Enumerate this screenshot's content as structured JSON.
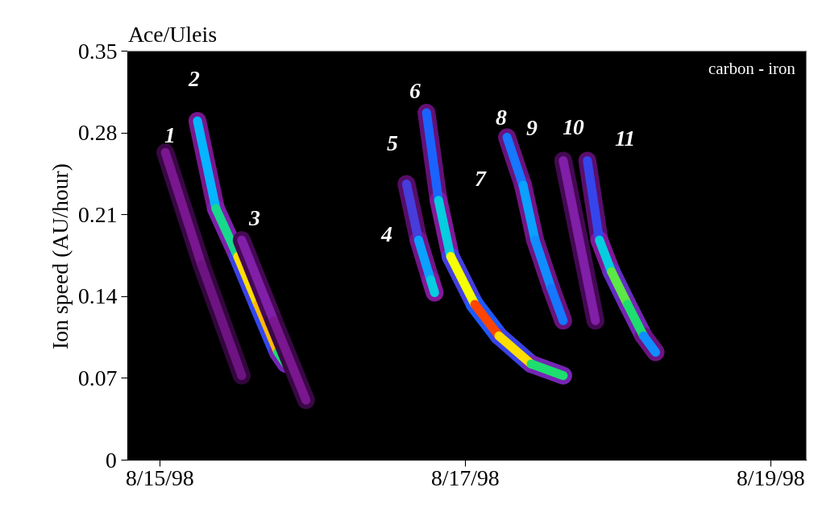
{
  "chart_data": {
    "type": "line",
    "title": "Ace/Uleis",
    "annotation": "carbon - iron",
    "y_label": "Ion speed (AU/hour)",
    "xlim": [
      14.79,
      19.23
    ],
    "xticks": [
      {
        "value": 15,
        "label": "8/15/98"
      },
      {
        "value": 17,
        "label": "8/17/98"
      },
      {
        "value": 19,
        "label": "8/19/98"
      }
    ],
    "ylim": [
      0,
      0.35
    ],
    "yticks": [
      0,
      0.07,
      0.14,
      0.21,
      0.28,
      0.35
    ],
    "clim": [
      0,
      1
    ],
    "series": [
      {
        "x": [
          15.037,
          15.274,
          15.537
        ],
        "values": [
          0.263,
          0.167,
          0.072
        ],
        "intensity": [
          0.25,
          0.25,
          0.2
        ]
      },
      {
        "x": [
          15.247,
          15.368,
          15.511,
          15.642,
          15.774,
          15.826
        ],
        "values": [
          0.29,
          0.215,
          0.174,
          0.133,
          0.092,
          0.082
        ],
        "intensity": [
          0.5,
          0.6,
          0.75,
          1.0,
          0.8,
          0.6
        ]
      },
      {
        "x": [
          15.537,
          15.747,
          15.958
        ],
        "values": [
          0.188,
          0.119,
          0.051
        ],
        "intensity": [
          0.3,
          0.3,
          0.2
        ]
      },
      {
        "x": [
          16.616,
          16.695,
          16.774,
          16.8
        ],
        "values": [
          0.236,
          0.188,
          0.154,
          0.143
        ],
        "intensity": [
          0.3,
          0.45,
          0.6,
          0.6
        ]
      },
      {
        "x": [
          16.747,
          16.826,
          16.905,
          17.063,
          17.221,
          17.432,
          17.642
        ],
        "values": [
          0.297,
          0.222,
          0.174,
          0.133,
          0.106,
          0.082,
          0.072
        ],
        "intensity": [
          0.4,
          0.5,
          0.7,
          1.0,
          0.95,
          0.8,
          0.6
        ]
      },
      {
        "x": [
          17.274,
          17.379,
          17.458,
          17.563,
          17.642
        ],
        "values": [
          0.276,
          0.235,
          0.188,
          0.147,
          0.119
        ],
        "intensity": [
          0.4,
          0.55,
          0.5,
          0.5,
          0.45
        ]
      },
      {
        "x": [
          17.642,
          17.747,
          17.853
        ],
        "values": [
          0.256,
          0.188,
          0.119
        ],
        "intensity": [
          0.3,
          0.3,
          0.3
        ]
      },
      {
        "x": [
          17.8,
          17.879,
          17.958,
          18.063,
          18.168,
          18.247
        ],
        "values": [
          0.256,
          0.188,
          0.161,
          0.133,
          0.106,
          0.092
        ],
        "intensity": [
          0.3,
          0.5,
          0.7,
          0.8,
          0.6,
          0.4
        ]
      }
    ],
    "track_labels": [
      {
        "text": "1",
        "x": 15.063,
        "y": 0.276
      },
      {
        "text": "2",
        "x": 15.221,
        "y": 0.324
      },
      {
        "text": "3",
        "x": 15.616,
        "y": 0.205
      },
      {
        "text": "4",
        "x": 16.484,
        "y": 0.191
      },
      {
        "text": "5",
        "x": 16.521,
        "y": 0.269
      },
      {
        "text": "6",
        "x": 16.668,
        "y": 0.314
      },
      {
        "text": "7",
        "x": 17.1,
        "y": 0.239
      },
      {
        "text": "8",
        "x": 17.232,
        "y": 0.291
      },
      {
        "text": "9",
        "x": 17.432,
        "y": 0.282
      },
      {
        "text": "10",
        "x": 17.705,
        "y": 0.283
      },
      {
        "text": "11",
        "x": 18.047,
        "y": 0.273
      }
    ]
  }
}
